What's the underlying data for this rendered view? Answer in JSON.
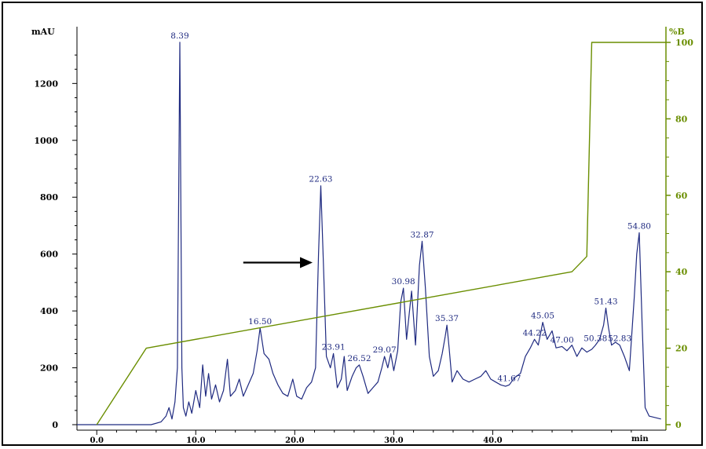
{
  "chart_data": {
    "type": "line",
    "title": "",
    "left_axis": {
      "label": "mAU",
      "ylim": [
        0,
        1350
      ],
      "ticks": [
        0,
        200,
        400,
        600,
        800,
        1000,
        1200
      ],
      "color": "#000000"
    },
    "right_axis": {
      "label": "%B",
      "ylim": [
        0,
        100
      ],
      "ticks": [
        0,
        20,
        40,
        60,
        80,
        100
      ],
      "color": "#6a8e00"
    },
    "x_axis": {
      "label": "min",
      "xlim": [
        -2,
        57.5
      ],
      "ticks": [
        0,
        10,
        20,
        30,
        40
      ],
      "tick_labels": [
        "0.0",
        "10.0",
        "20.0",
        "30.0",
        "40.0"
      ]
    },
    "series": [
      {
        "axis": "left",
        "color": "#1f2a80",
        "points": [
          [
            -2,
            0
          ],
          [
            5.5,
            0
          ],
          [
            6.5,
            10
          ],
          [
            7.0,
            30
          ],
          [
            7.3,
            60
          ],
          [
            7.6,
            20
          ],
          [
            7.9,
            80
          ],
          [
            8.15,
            200
          ],
          [
            8.39,
            1345
          ],
          [
            8.6,
            200
          ],
          [
            8.75,
            60
          ],
          [
            9.0,
            30
          ],
          [
            9.3,
            80
          ],
          [
            9.6,
            40
          ],
          [
            10.0,
            120
          ],
          [
            10.4,
            60
          ],
          [
            10.7,
            210
          ],
          [
            11.0,
            100
          ],
          [
            11.3,
            180
          ],
          [
            11.6,
            90
          ],
          [
            12.0,
            140
          ],
          [
            12.4,
            80
          ],
          [
            12.8,
            120
          ],
          [
            13.2,
            230
          ],
          [
            13.5,
            100
          ],
          [
            14.0,
            120
          ],
          [
            14.4,
            160
          ],
          [
            14.8,
            100
          ],
          [
            15.3,
            140
          ],
          [
            15.8,
            180
          ],
          [
            16.2,
            260
          ],
          [
            16.5,
            340
          ],
          [
            16.9,
            250
          ],
          [
            17.4,
            230
          ],
          [
            17.8,
            180
          ],
          [
            18.3,
            140
          ],
          [
            18.8,
            110
          ],
          [
            19.3,
            100
          ],
          [
            19.8,
            160
          ],
          [
            20.2,
            100
          ],
          [
            20.7,
            90
          ],
          [
            21.2,
            130
          ],
          [
            21.7,
            150
          ],
          [
            22.1,
            200
          ],
          [
            22.4,
            600
          ],
          [
            22.63,
            840
          ],
          [
            22.9,
            560
          ],
          [
            23.2,
            240
          ],
          [
            23.6,
            200
          ],
          [
            23.91,
            250
          ],
          [
            24.3,
            130
          ],
          [
            24.7,
            160
          ],
          [
            25.0,
            240
          ],
          [
            25.3,
            120
          ],
          [
            25.8,
            170
          ],
          [
            26.2,
            200
          ],
          [
            26.52,
            210
          ],
          [
            26.9,
            170
          ],
          [
            27.4,
            110
          ],
          [
            27.9,
            130
          ],
          [
            28.4,
            150
          ],
          [
            28.8,
            200
          ],
          [
            29.07,
            240
          ],
          [
            29.4,
            200
          ],
          [
            29.7,
            250
          ],
          [
            30.0,
            190
          ],
          [
            30.4,
            260
          ],
          [
            30.7,
            430
          ],
          [
            30.98,
            480
          ],
          [
            31.3,
            300
          ],
          [
            31.8,
            470
          ],
          [
            32.2,
            280
          ],
          [
            32.6,
            560
          ],
          [
            32.87,
            645
          ],
          [
            33.2,
            480
          ],
          [
            33.6,
            240
          ],
          [
            34.0,
            170
          ],
          [
            34.5,
            190
          ],
          [
            34.9,
            250
          ],
          [
            35.2,
            310
          ],
          [
            35.37,
            350
          ],
          [
            35.6,
            270
          ],
          [
            35.9,
            150
          ],
          [
            36.4,
            190
          ],
          [
            37.0,
            160
          ],
          [
            37.6,
            150
          ],
          [
            38.2,
            160
          ],
          [
            38.8,
            170
          ],
          [
            39.3,
            190
          ],
          [
            39.8,
            160
          ],
          [
            40.3,
            150
          ],
          [
            40.8,
            140
          ],
          [
            41.3,
            135
          ],
          [
            41.67,
            140
          ],
          [
            42.2,
            165
          ],
          [
            42.8,
            180
          ],
          [
            43.3,
            240
          ],
          [
            43.8,
            270
          ],
          [
            44.22,
            300
          ],
          [
            44.6,
            280
          ],
          [
            45.05,
            360
          ],
          [
            45.5,
            300
          ],
          [
            46.0,
            330
          ],
          [
            46.4,
            270
          ],
          [
            47.0,
            275
          ],
          [
            47.5,
            260
          ],
          [
            48.0,
            280
          ],
          [
            48.5,
            240
          ],
          [
            49.0,
            270
          ],
          [
            49.5,
            255
          ],
          [
            50.0,
            265
          ],
          [
            50.38,
            280
          ],
          [
            50.8,
            300
          ],
          [
            51.2,
            350
          ],
          [
            51.43,
            410
          ],
          [
            51.7,
            340
          ],
          [
            52.0,
            280
          ],
          [
            52.4,
            290
          ],
          [
            52.83,
            280
          ],
          [
            53.3,
            240
          ],
          [
            53.8,
            190
          ],
          [
            54.3,
            450
          ],
          [
            54.55,
            600
          ],
          [
            54.8,
            675
          ],
          [
            55.1,
            350
          ],
          [
            55.4,
            60
          ],
          [
            55.8,
            30
          ],
          [
            57.0,
            20
          ]
        ],
        "peak_labels": [
          {
            "x": 8.39,
            "y": 1345,
            "label": "8.39"
          },
          {
            "x": 16.5,
            "y": 340,
            "label": "16.50"
          },
          {
            "x": 22.63,
            "y": 840,
            "label": "22.63"
          },
          {
            "x": 23.91,
            "y": 250,
            "label": "23.91"
          },
          {
            "x": 26.52,
            "y": 210,
            "label": "26.52"
          },
          {
            "x": 29.07,
            "y": 240,
            "label": "29.07"
          },
          {
            "x": 30.98,
            "y": 480,
            "label": "30.98"
          },
          {
            "x": 32.87,
            "y": 645,
            "label": "32.87"
          },
          {
            "x": 35.37,
            "y": 350,
            "label": "35.37"
          },
          {
            "x": 41.67,
            "y": 140,
            "label": "41.67"
          },
          {
            "x": 44.22,
            "y": 300,
            "label": "44.22"
          },
          {
            "x": 45.05,
            "y": 360,
            "label": "45.05"
          },
          {
            "x": 47.0,
            "y": 275,
            "label": "47.00"
          },
          {
            "x": 50.38,
            "y": 280,
            "label": "50.38"
          },
          {
            "x": 51.43,
            "y": 410,
            "label": "51.43"
          },
          {
            "x": 52.83,
            "y": 280,
            "label": "52.83"
          },
          {
            "x": 54.8,
            "y": 675,
            "label": "54.80"
          }
        ]
      },
      {
        "axis": "right",
        "color": "#6a8e00",
        "points": [
          [
            0,
            0
          ],
          [
            5,
            20
          ],
          [
            48,
            40
          ],
          [
            49.5,
            44
          ],
          [
            50,
            100
          ],
          [
            57.5,
            100
          ]
        ]
      }
    ],
    "annotations": [
      {
        "type": "arrow",
        "from_x": 14.8,
        "from_y": 570,
        "to_x": 21.8,
        "to_y": 570,
        "color": "#000000"
      }
    ],
    "grid": false
  }
}
